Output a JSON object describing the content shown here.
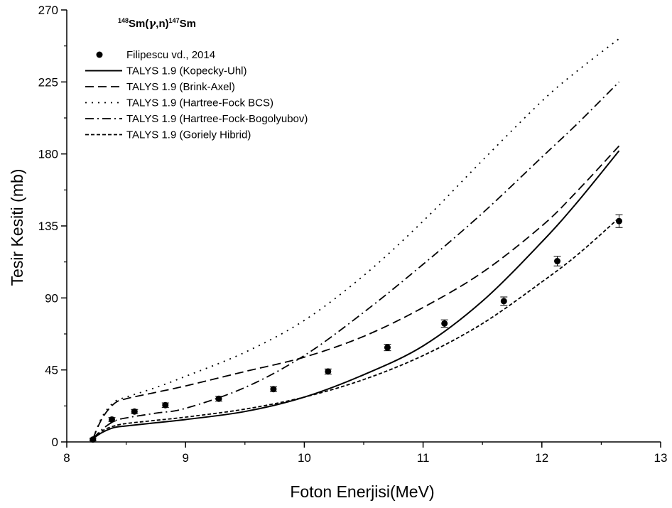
{
  "chart_data": {
    "type": "line",
    "title": {
      "pre": "148",
      "a": "Sm(",
      "gamma": "γ",
      "b": ",n)",
      "mid": "147",
      "c": "Sm"
    },
    "xlabel": "Foton Enerjisi(MeV)",
    "ylabel": "Tesir Kesiti (mb)",
    "xlim": [
      8,
      13
    ],
    "ylim": [
      0,
      270
    ],
    "xticks": [
      "8",
      "9",
      "10",
      "11",
      "12",
      "13"
    ],
    "yticks": [
      "0",
      "45",
      "90",
      "135",
      "180",
      "225",
      "270"
    ],
    "legend_position": "top-left",
    "series": [
      {
        "name": "Filipescu vd., 2014",
        "style": "scatter",
        "x": [
          8.22,
          8.38,
          8.57,
          8.83,
          9.28,
          9.74,
          10.2,
          10.7,
          11.18,
          11.68,
          12.13,
          12.65
        ],
        "y": [
          1.5,
          14,
          19,
          23,
          27,
          33,
          44,
          59,
          74,
          88,
          113,
          138
        ],
        "err": [
          0.8,
          1.2,
          1.3,
          1.4,
          1.5,
          1.5,
          1.6,
          2.0,
          2.3,
          2.6,
          3.0,
          4.0
        ]
      },
      {
        "name": "TALYS 1.9 (Kopecky-Uhl)",
        "style": "solid",
        "x": [
          8.22,
          8.3,
          8.4,
          8.5,
          8.75,
          9.0,
          9.5,
          10.0,
          10.5,
          11.0,
          11.5,
          12.0,
          12.3,
          12.65
        ],
        "y": [
          2,
          6,
          9,
          10,
          12,
          14,
          19,
          28,
          42,
          60,
          88,
          125,
          150,
          182
        ]
      },
      {
        "name": "TALYS 1.9 (Brink-Axel)",
        "style": "dashed",
        "x": [
          8.22,
          8.3,
          8.4,
          8.5,
          8.75,
          9.0,
          9.5,
          10.0,
          10.5,
          11.0,
          11.5,
          12.0,
          12.3,
          12.65
        ],
        "y": [
          2,
          15,
          24,
          27,
          31,
          35,
          44,
          53,
          66,
          84,
          106,
          135,
          157,
          185
        ]
      },
      {
        "name": "TALYS 1.9 (Hartree-Fock BCS)",
        "style": "dotted",
        "x": [
          8.22,
          8.3,
          8.4,
          8.5,
          8.75,
          9.0,
          9.5,
          10.0,
          10.5,
          11.0,
          11.5,
          12.0,
          12.3,
          12.65
        ],
        "y": [
          2,
          16,
          25,
          28,
          34,
          41,
          56,
          76,
          104,
          138,
          176,
          213,
          232,
          252
        ]
      },
      {
        "name": "TALYS 1.9 (Hartree-Fock-Bogolyubov)",
        "style": "dashdot",
        "x": [
          8.22,
          8.3,
          8.4,
          8.5,
          8.75,
          9.0,
          9.5,
          10.0,
          10.5,
          11.0,
          11.5,
          12.0,
          12.3,
          12.65
        ],
        "y": [
          2,
          8,
          13,
          15,
          18,
          21,
          34,
          54,
          81,
          111,
          143,
          178,
          199,
          225
        ]
      },
      {
        "name": "TALYS 1.9 (Goriely Hibrid)",
        "style": "shortdash",
        "x": [
          8.22,
          8.3,
          8.4,
          8.5,
          8.75,
          9.0,
          9.5,
          10.0,
          10.5,
          11.0,
          11.5,
          12.0,
          12.3,
          12.65
        ],
        "y": [
          2,
          7,
          10,
          11.5,
          13.5,
          15.5,
          20.5,
          28,
          39,
          54,
          74,
          100,
          117,
          140
        ]
      }
    ]
  }
}
